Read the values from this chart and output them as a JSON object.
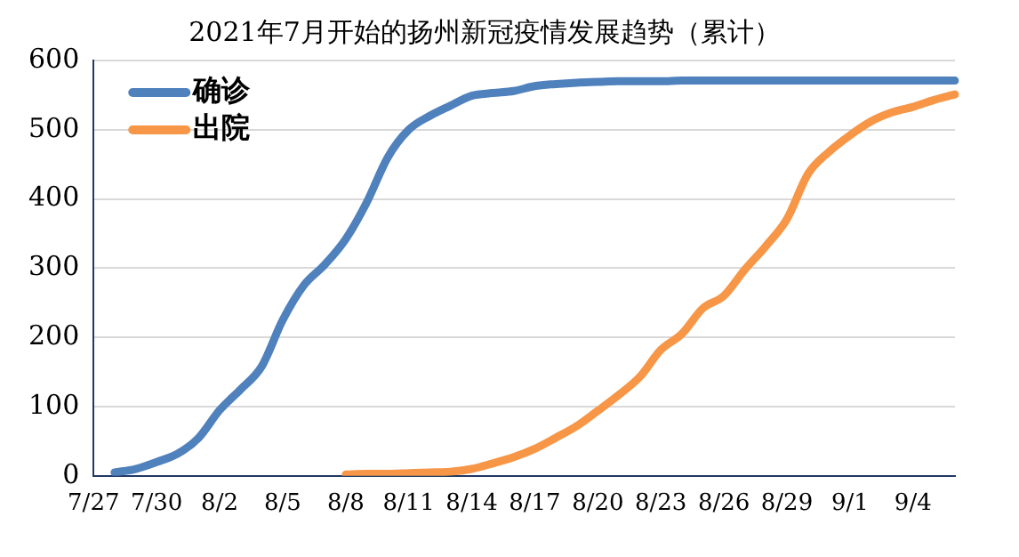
{
  "chart_data": {
    "type": "line",
    "title": "2021年7月开始的扬州新冠疫情发展趋势（累计）",
    "categories": [
      "7/27",
      null,
      null,
      "7/30",
      null,
      null,
      "8/2",
      null,
      null,
      "8/5",
      null,
      null,
      "8/8",
      null,
      null,
      "8/11",
      null,
      null,
      "8/14",
      null,
      null,
      "8/17",
      null,
      null,
      "8/20",
      null,
      null,
      "8/23",
      null,
      null,
      "8/26",
      null,
      null,
      "8/29",
      null,
      null,
      "9/1",
      null,
      null,
      "9/4",
      null,
      null
    ],
    "series": [
      {
        "name": "确诊",
        "color": "#4f81bd",
        "values": [
          null,
          5,
          10,
          20,
          32,
          55,
          95,
          125,
          158,
          225,
          275,
          305,
          342,
          395,
          460,
          500,
          520,
          535,
          549,
          553,
          556,
          563,
          566,
          568,
          569,
          570,
          570,
          570,
          571,
          571,
          571,
          571,
          571,
          571,
          571,
          571,
          571,
          571,
          571,
          571,
          571,
          571
        ]
      },
      {
        "name": "出院",
        "color": "#f79646",
        "values": [
          null,
          null,
          null,
          null,
          null,
          null,
          null,
          null,
          null,
          null,
          null,
          null,
          2,
          3,
          3,
          4,
          5,
          6,
          10,
          18,
          27,
          39,
          55,
          72,
          94,
          117,
          143,
          182,
          205,
          242,
          260,
          298,
          332,
          371,
          436,
          468,
          492,
          512,
          525,
          533,
          543,
          551
        ]
      }
    ],
    "ylim": [
      0,
      600
    ],
    "yticks": [
      0,
      100,
      200,
      300,
      400,
      500,
      600
    ],
    "grid": "y",
    "legend": "top left",
    "marker": "none",
    "line_style": "solid"
  }
}
